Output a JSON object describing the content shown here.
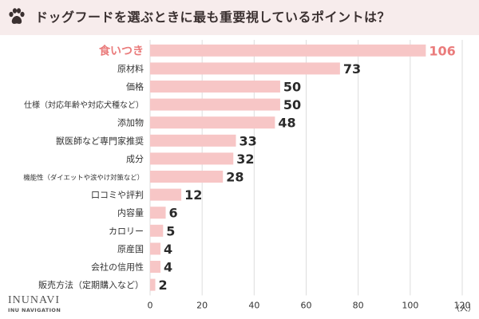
{
  "header": {
    "title": "ドッグフードを選ぶときに最も重要視しているポイントは？",
    "icon": "paw-icon",
    "bg_color": "#f7ecec"
  },
  "logo": {
    "main": "INUNAVI",
    "sub": "INU NAVIGATION"
  },
  "colors": {
    "bar": "#f7c6c6",
    "highlight_text": "#ea7b7b",
    "grid": "#dddddd",
    "text": "#333333"
  },
  "chart_data": {
    "type": "bar",
    "orientation": "horizontal",
    "title": "ドッグフードを選ぶときに最も重要視しているポイントは？",
    "xlabel": "（人）",
    "ylabel": "",
    "xlim": [
      0,
      120
    ],
    "xticks": [
      0,
      20,
      40,
      60,
      80,
      100,
      120
    ],
    "grid": true,
    "highlight_index": 0,
    "categories": [
      "食いつき",
      "原材料",
      "価格",
      "仕様（対応年齢や対応犬種など）",
      "添加物",
      "獣医師など専門家推奨",
      "成分",
      "機能性（ダイエットや涙やけ対策など）",
      "口コミや評判",
      "内容量",
      "カロリー",
      "原産国",
      "会社の信用性",
      "販売方法（定期購入など）"
    ],
    "values": [
      106,
      73,
      50,
      50,
      48,
      33,
      32,
      28,
      12,
      6,
      5,
      4,
      4,
      2
    ]
  }
}
